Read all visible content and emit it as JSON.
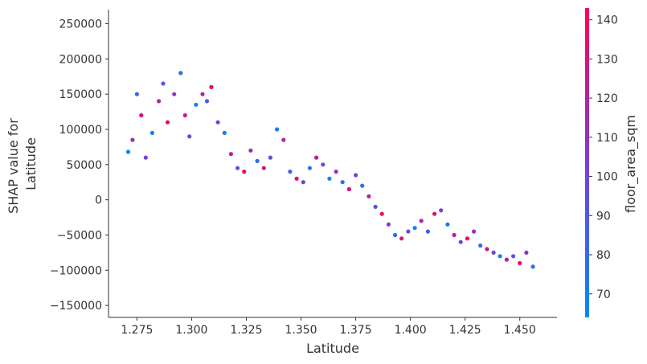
{
  "chart_data": {
    "type": "scatter",
    "xlabel": "Latitude",
    "ylabel_lines": [
      "SHAP value for",
      "Latitude"
    ],
    "xlim": [
      1.262,
      1.467
    ],
    "ylim": [
      -167000,
      270000
    ],
    "x_ticks": [
      1.275,
      1.3,
      1.325,
      1.35,
      1.375,
      1.4,
      1.425,
      1.45
    ],
    "x_tick_labels": [
      "1.275",
      "1.300",
      "1.325",
      "1.350",
      "1.375",
      "1.400",
      "1.425",
      "1.450"
    ],
    "y_ticks": [
      -150000,
      -100000,
      -50000,
      0,
      50000,
      100000,
      150000,
      200000,
      250000
    ],
    "y_tick_labels": [
      "−150000",
      "−100000",
      "−50000",
      "0",
      "50000",
      "100000",
      "150000",
      "200000",
      "250000"
    ],
    "grid": false,
    "colorbar": {
      "label": "floor_area_sqm",
      "range": [
        64,
        143
      ],
      "ticks": [
        70,
        80,
        90,
        100,
        110,
        120,
        130,
        140
      ],
      "tick_labels": [
        "70",
        "80",
        "90",
        "100",
        "110",
        "120",
        "130",
        "140"
      ],
      "low_color": "#008afb",
      "mid_color": "#7b3ed3",
      "high_color": "#ff0052"
    },
    "series": [
      {
        "x": [
          1.271,
          1.273,
          1.275,
          1.277,
          1.279,
          1.282,
          1.285,
          1.287,
          1.289,
          1.292,
          1.295,
          1.297,
          1.299,
          1.302,
          1.305,
          1.307,
          1.309,
          1.312,
          1.315,
          1.318,
          1.321,
          1.324,
          1.327,
          1.33,
          1.333,
          1.336,
          1.339,
          1.342,
          1.345,
          1.348,
          1.351,
          1.354,
          1.357,
          1.36,
          1.363,
          1.366,
          1.369,
          1.372,
          1.375,
          1.378,
          1.381,
          1.384,
          1.387,
          1.39,
          1.393,
          1.396,
          1.399,
          1.402,
          1.405,
          1.408,
          1.411,
          1.414,
          1.417,
          1.42,
          1.423,
          1.426,
          1.429,
          1.432,
          1.435,
          1.438,
          1.441,
          1.444,
          1.447,
          1.45,
          1.453,
          1.456
        ],
        "y": [
          68000,
          85000,
          150000,
          120000,
          60000,
          95000,
          140000,
          165000,
          110000,
          150000,
          180000,
          120000,
          90000,
          135000,
          150000,
          140000,
          160000,
          110000,
          95000,
          65000,
          45000,
          40000,
          70000,
          55000,
          45000,
          60000,
          100000,
          85000,
          40000,
          30000,
          25000,
          45000,
          60000,
          50000,
          30000,
          40000,
          25000,
          15000,
          35000,
          20000,
          5000,
          -10000,
          -20000,
          -35000,
          -50000,
          -55000,
          -45000,
          -40000,
          -30000,
          -45000,
          -20000,
          -15000,
          -35000,
          -50000,
          -60000,
          -55000,
          -45000,
          -65000,
          -70000,
          -75000,
          -80000,
          -85000,
          -80000,
          -90000,
          -75000,
          -95000
        ]
      }
    ]
  }
}
